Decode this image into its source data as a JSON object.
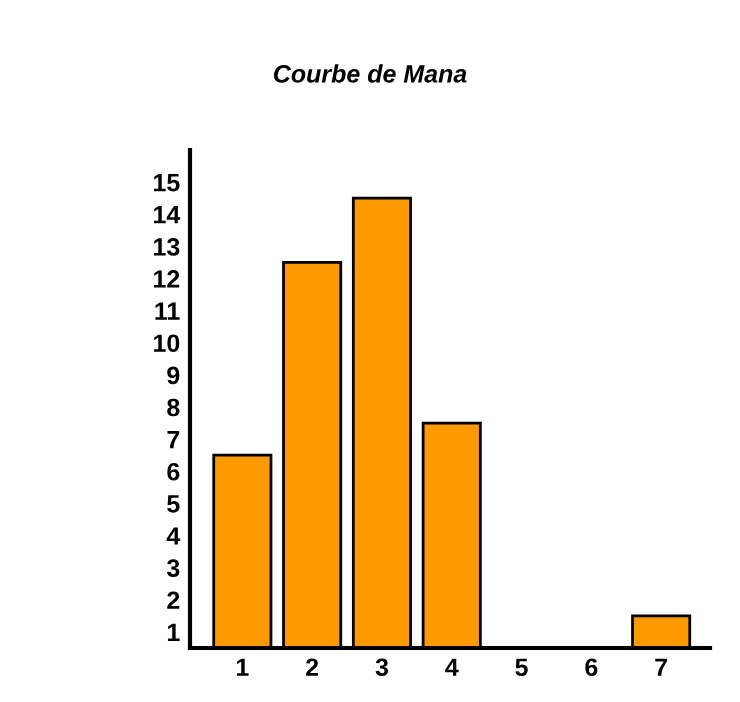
{
  "chart_data": {
    "type": "bar",
    "title": "Courbe de Mana",
    "categories": [
      "1",
      "2",
      "3",
      "4",
      "5",
      "6",
      "7"
    ],
    "values": [
      6,
      12,
      14,
      7,
      0,
      0,
      1
    ],
    "color": "#ff9900",
    "ylim": [
      0,
      15.5
    ],
    "yticks": [
      {
        "value": 0.5,
        "label": "1"
      },
      {
        "value": 1.5,
        "label": "2"
      },
      {
        "value": 2.5,
        "label": "3"
      },
      {
        "value": 3.5,
        "label": "4"
      },
      {
        "value": 4.5,
        "label": "5"
      },
      {
        "value": 5.5,
        "label": "6"
      },
      {
        "value": 6.5,
        "label": "7"
      },
      {
        "value": 7.5,
        "label": "8"
      },
      {
        "value": 8.5,
        "label": "9"
      },
      {
        "value": 9.5,
        "label": "10"
      },
      {
        "value": 10.5,
        "label": "11"
      },
      {
        "value": 11.5,
        "label": "12"
      },
      {
        "value": 12.5,
        "label": "13"
      },
      {
        "value": 13.5,
        "label": "14"
      },
      {
        "value": 14.5,
        "label": "15"
      }
    ],
    "grid": false
  }
}
